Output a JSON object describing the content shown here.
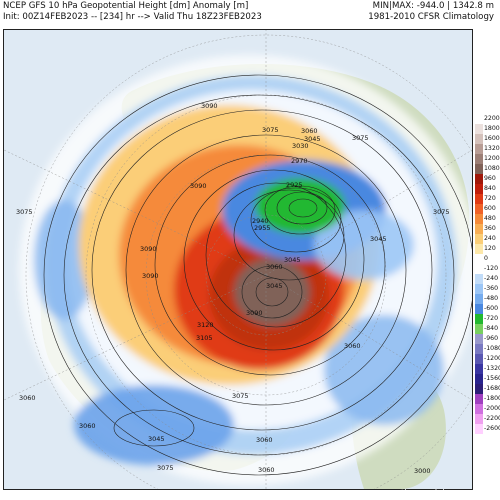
{
  "header": {
    "title": "NCEP GFS 10 hPa Geopotential Height [dm] Anomaly [m]",
    "init": "Init: 00Z14FEB2023 -- [234] hr --> Valid Thu 18Z23FEB2023",
    "minmax": "MIN|MAX: -944.0 | 1342.8 m",
    "climatology": "1981-2010 CFSR Climatology"
  },
  "colors": {
    "ocean": "#dfeaf4",
    "land": "#cfdcc0",
    "red_core": "#c03010",
    "brown_core": "#806258",
    "blue": "#4a88e0",
    "green": "#22b830"
  },
  "colorbar": {
    "levels": [
      {
        "label": "2200",
        "color": "#ffffff"
      },
      {
        "label": "1800",
        "color": "#ebe0dd"
      },
      {
        "label": "1600",
        "color": "#d4c1bb"
      },
      {
        "label": "1320",
        "color": "#b89d95"
      },
      {
        "label": "1200",
        "color": "#9c7f76"
      },
      {
        "label": "1080",
        "color": "#806258"
      },
      {
        "label": "960",
        "color": "#a0180a"
      },
      {
        "label": "840",
        "color": "#c01e0c"
      },
      {
        "label": "720",
        "color": "#e03a15"
      },
      {
        "label": "600",
        "color": "#f06228"
      },
      {
        "label": "480",
        "color": "#f58a3a"
      },
      {
        "label": "360",
        "color": "#f8ae55"
      },
      {
        "label": "240",
        "color": "#fbce78"
      },
      {
        "label": "120",
        "color": "#fde8aa"
      },
      {
        "label": "0",
        "color": "#ffffff"
      },
      {
        "label": "-120",
        "color": "#ffffff"
      },
      {
        "label": "-240",
        "color": "#c2dcf8"
      },
      {
        "label": "-360",
        "color": "#9cc6f6"
      },
      {
        "label": "-480",
        "color": "#76acee"
      },
      {
        "label": "-600",
        "color": "#4a88e0"
      },
      {
        "label": "-720",
        "color": "#22b830"
      },
      {
        "label": "-840",
        "color": "#78d060"
      },
      {
        "label": "-960",
        "color": "#9999cc"
      },
      {
        "label": "-1080",
        "color": "#7a7ac2"
      },
      {
        "label": "-1200",
        "color": "#5a58b2"
      },
      {
        "label": "-1320",
        "color": "#3a36a2"
      },
      {
        "label": "-1560",
        "color": "#2a248e"
      },
      {
        "label": "-1680",
        "color": "#2d1e78"
      },
      {
        "label": "-1800",
        "color": "#a040c0"
      },
      {
        "label": "-2000",
        "color": "#d070e0"
      },
      {
        "label": "-2200",
        "color": "#f0a0f0"
      },
      {
        "label": "-2600",
        "color": "#ffd0ff"
      }
    ]
  },
  "contour_labels": [
    "3090",
    "3075",
    "3060",
    "3075",
    "3045",
    "3030",
    "2970",
    "2925",
    "3090",
    "2940",
    "2955",
    "3045",
    "3075",
    "3060",
    "3045",
    "3090",
    "3060",
    "3045",
    "3120",
    "3105",
    "3090",
    "3090",
    "3075",
    "3060",
    "3060",
    "3075",
    "3045",
    "3060",
    "3075",
    "3060",
    "3000"
  ],
  "footer": {
    "credit": "weathermodels.com"
  }
}
